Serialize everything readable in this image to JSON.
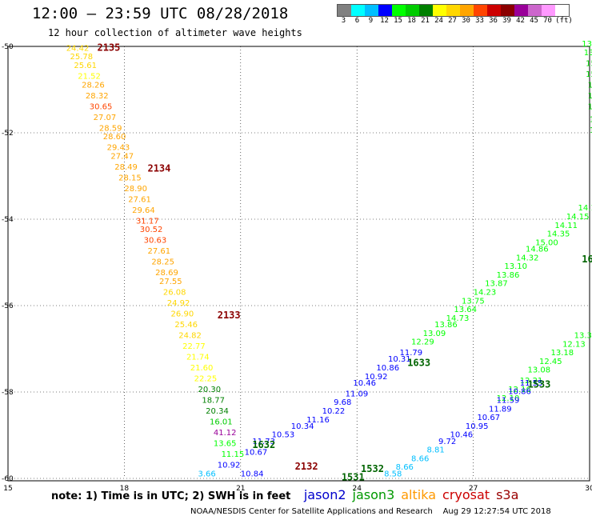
{
  "title": "12:00 – 23:59 UTC 08/28/2018",
  "subtitle": "12 hour collection of altimeter wave heights",
  "legend": {
    "colors": [
      "#808080",
      "#00ffff",
      "#00bfff",
      "#0000ff",
      "#00ff00",
      "#00cc00",
      "#008000",
      "#ffff00",
      "#ffd700",
      "#ffa500",
      "#ff4500",
      "#cc0000",
      "#8b0000",
      "#990099",
      "#cc66cc",
      "#ff99ff",
      "#ffffff"
    ],
    "labels": [
      "3",
      "6",
      "9",
      "12",
      "15",
      "18",
      "21",
      "24",
      "27",
      "30",
      "33",
      "36",
      "39",
      "42",
      "45",
      "70",
      "(ft)"
    ]
  },
  "axes": {
    "lon_ticks": [
      "15",
      "18",
      "21",
      "24",
      "27",
      "30"
    ],
    "lat_ticks": [
      "-50",
      "-52",
      "-54",
      "-56",
      "-58",
      "-60"
    ],
    "lon_range": [
      15,
      30
    ],
    "lat_range": [
      -60,
      -50
    ]
  },
  "chart_data": {
    "type": "scatter",
    "pass_labels": [
      {
        "text": "2135",
        "lon": 17.3,
        "lat": -50.1,
        "color": "#8b0000"
      },
      {
        "text": "2134",
        "lon": 18.6,
        "lat": -52.9,
        "color": "#8b0000"
      },
      {
        "text": "2133",
        "lon": 20.4,
        "lat": -56.3,
        "color": "#8b0000"
      },
      {
        "text": "2132",
        "lon": 22.4,
        "lat": -59.8,
        "color": "#8b0000"
      },
      {
        "text": "1633",
        "lon": 25.3,
        "lat": -57.4,
        "color": "#006400"
      },
      {
        "text": "1533",
        "lon": 28.4,
        "lat": -57.9,
        "color": "#006400"
      },
      {
        "text": "1632",
        "lon": 21.3,
        "lat": -59.3,
        "color": "#006400"
      },
      {
        "text": "1532",
        "lon": 24.1,
        "lat": -59.85,
        "color": "#006400"
      },
      {
        "text": "1531",
        "lon": 23.6,
        "lat": -60.05,
        "color": "#006400"
      },
      {
        "text": "16",
        "lon": 29.8,
        "lat": -55.0,
        "color": "#006400"
      }
    ],
    "series": [
      {
        "name": "altika-2135",
        "points": [
          {
            "lon": 16.5,
            "lat": -50.1,
            "v": "24.42",
            "c": "#ffd700"
          },
          {
            "lon": 16.6,
            "lat": -50.3,
            "v": "25.78",
            "c": "#ffd700"
          },
          {
            "lon": 16.7,
            "lat": -50.5,
            "v": "25.61",
            "c": "#ffd700"
          },
          {
            "lon": 16.8,
            "lat": -50.75,
            "v": "21.52",
            "c": "#ffff00"
          },
          {
            "lon": 16.9,
            "lat": -50.95,
            "v": "28.26",
            "c": "#ffa500"
          },
          {
            "lon": 17.0,
            "lat": -51.2,
            "v": "28.32",
            "c": "#ffa500"
          },
          {
            "lon": 17.1,
            "lat": -51.45,
            "v": "30.65",
            "c": "#ff4500"
          },
          {
            "lon": 17.2,
            "lat": -51.7,
            "v": "27.07",
            "c": "#ffa500"
          },
          {
            "lon": 17.35,
            "lat": -51.95,
            "v": "28.59",
            "c": "#ffa500"
          },
          {
            "lon": 17.45,
            "lat": -52.15,
            "v": "28.60",
            "c": "#ffa500"
          },
          {
            "lon": 17.55,
            "lat": -52.4,
            "v": "29.43",
            "c": "#ffa500"
          },
          {
            "lon": 17.65,
            "lat": -52.6,
            "v": "27.47",
            "c": "#ffa500"
          },
          {
            "lon": 17.75,
            "lat": -52.85,
            "v": "28.49",
            "c": "#ffa500"
          },
          {
            "lon": 17.85,
            "lat": -53.1,
            "v": "28.15",
            "c": "#ffa500"
          },
          {
            "lon": 18.0,
            "lat": -53.35,
            "v": "28.90",
            "c": "#ffa500"
          },
          {
            "lon": 18.1,
            "lat": -53.6,
            "v": "27.61",
            "c": "#ffa500"
          },
          {
            "lon": 18.2,
            "lat": -53.85,
            "v": "29.64",
            "c": "#ffa500"
          },
          {
            "lon": 18.3,
            "lat": -54.1,
            "v": "31.17",
            "c": "#ff4500"
          },
          {
            "lon": 18.4,
            "lat": -54.3,
            "v": "30.52",
            "c": "#ff4500"
          },
          {
            "lon": 18.5,
            "lat": -54.55,
            "v": "30.63",
            "c": "#ff4500"
          },
          {
            "lon": 18.6,
            "lat": -54.8,
            "v": "27.61",
            "c": "#ffa500"
          },
          {
            "lon": 18.7,
            "lat": -55.05,
            "v": "28.25",
            "c": "#ffa500"
          },
          {
            "lon": 18.8,
            "lat": -55.3,
            "v": "28.69",
            "c": "#ffa500"
          },
          {
            "lon": 18.9,
            "lat": -55.5,
            "v": "27.55",
            "c": "#ffa500"
          },
          {
            "lon": 19.0,
            "lat": -55.75,
            "v": "26.08",
            "c": "#ffd700"
          },
          {
            "lon": 19.1,
            "lat": -56.0,
            "v": "24.92",
            "c": "#ffd700"
          },
          {
            "lon": 19.2,
            "lat": -56.25,
            "v": "26.90",
            "c": "#ffd700"
          },
          {
            "lon": 19.3,
            "lat": -56.5,
            "v": "25.46",
            "c": "#ffd700"
          },
          {
            "lon": 19.4,
            "lat": -56.75,
            "v": "24.82",
            "c": "#ffd700"
          },
          {
            "lon": 19.5,
            "lat": -57.0,
            "v": "22.77",
            "c": "#ffff00"
          },
          {
            "lon": 19.6,
            "lat": -57.25,
            "v": "21.74",
            "c": "#ffff00"
          },
          {
            "lon": 19.7,
            "lat": -57.5,
            "v": "21.60",
            "c": "#ffff00"
          },
          {
            "lon": 19.8,
            "lat": -57.75,
            "v": "22.25",
            "c": "#ffff00"
          },
          {
            "lon": 19.9,
            "lat": -58.0,
            "v": "20.30",
            "c": "#008000"
          },
          {
            "lon": 20.0,
            "lat": -58.25,
            "v": "18.77",
            "c": "#008000"
          },
          {
            "lon": 20.1,
            "lat": -58.5,
            "v": "20.34",
            "c": "#008000"
          },
          {
            "lon": 20.2,
            "lat": -58.75,
            "v": "16.01",
            "c": "#00cc00"
          },
          {
            "lon": 20.3,
            "lat": -59.0,
            "v": "41.12",
            "c": "#990099"
          },
          {
            "lon": 20.3,
            "lat": -59.25,
            "v": "13.65",
            "c": "#00ff00"
          },
          {
            "lon": 20.5,
            "lat": -59.5,
            "v": "11.15",
            "c": "#00ff00"
          },
          {
            "lon": 20.4,
            "lat": -59.75,
            "v": "10.92",
            "c": "#0000ff"
          },
          {
            "lon": 19.9,
            "lat": -59.95,
            "v": "3.66",
            "c": "#00bfff"
          },
          {
            "lon": 21.0,
            "lat": -59.95,
            "v": "10.84",
            "c": "#0000ff"
          },
          {
            "lon": 21.1,
            "lat": -60.25,
            "v": "11.99",
            "c": "#0000ff"
          },
          {
            "lon": 21.3,
            "lat": -60.5,
            "v": "17.89",
            "c": "#00cc00"
          },
          {
            "lon": 21.4,
            "lat": -60.75,
            "v": "6.48",
            "c": "#00bfff"
          }
        ]
      },
      {
        "name": "jason2-1633",
        "points": [
          {
            "lon": 21.1,
            "lat": -59.45,
            "v": "10.67",
            "c": "#0000ff"
          },
          {
            "lon": 21.3,
            "lat": -59.2,
            "v": "11.73",
            "c": "#0000ff"
          },
          {
            "lon": 21.8,
            "lat": -59.05,
            "v": "10.53",
            "c": "#0000ff"
          },
          {
            "lon": 22.3,
            "lat": -58.85,
            "v": "10.34",
            "c": "#0000ff"
          },
          {
            "lon": 22.7,
            "lat": -58.7,
            "v": "11.16",
            "c": "#0000ff"
          },
          {
            "lon": 23.1,
            "lat": -58.5,
            "v": "10.22",
            "c": "#0000ff"
          },
          {
            "lon": 23.4,
            "lat": -58.3,
            "v": "9.68",
            "c": "#0000ff"
          },
          {
            "lon": 23.7,
            "lat": -58.1,
            "v": "11.09",
            "c": "#0000ff"
          },
          {
            "lon": 23.9,
            "lat": -57.85,
            "v": "10.46",
            "c": "#0000ff"
          },
          {
            "lon": 24.2,
            "lat": -57.7,
            "v": "10.92",
            "c": "#0000ff"
          },
          {
            "lon": 24.5,
            "lat": -57.5,
            "v": "10.86",
            "c": "#0000ff"
          },
          {
            "lon": 24.8,
            "lat": -57.3,
            "v": "10.31",
            "c": "#0000ff"
          },
          {
            "lon": 25.1,
            "lat": -57.15,
            "v": "11.79",
            "c": "#0000ff"
          }
        ]
      },
      {
        "name": "jason3-1633",
        "points": [
          {
            "lon": 25.4,
            "lat": -56.9,
            "v": "12.29",
            "c": "#00ff00"
          },
          {
            "lon": 25.7,
            "lat": -56.7,
            "v": "13.09",
            "c": "#00ff00"
          },
          {
            "lon": 26.0,
            "lat": -56.5,
            "v": "13.86",
            "c": "#00ff00"
          },
          {
            "lon": 26.3,
            "lat": -56.35,
            "v": "14.73",
            "c": "#00ff00"
          },
          {
            "lon": 26.5,
            "lat": -56.15,
            "v": "13.64",
            "c": "#00ff00"
          },
          {
            "lon": 26.7,
            "lat": -55.95,
            "v": "13.75",
            "c": "#00ff00"
          },
          {
            "lon": 27.0,
            "lat": -55.75,
            "v": "14.23",
            "c": "#00ff00"
          },
          {
            "lon": 27.3,
            "lat": -55.55,
            "v": "13.87",
            "c": "#00ff00"
          },
          {
            "lon": 27.6,
            "lat": -55.35,
            "v": "13.86",
            "c": "#00ff00"
          },
          {
            "lon": 27.8,
            "lat": -55.15,
            "v": "13.10",
            "c": "#00ff00"
          },
          {
            "lon": 28.1,
            "lat": -54.95,
            "v": "14.32",
            "c": "#00ff00"
          },
          {
            "lon": 28.35,
            "lat": -54.75,
            "v": "14.86",
            "c": "#00ff00"
          },
          {
            "lon": 28.6,
            "lat": -54.6,
            "v": "15.00",
            "c": "#00ff00"
          },
          {
            "lon": 28.9,
            "lat": -54.4,
            "v": "14.35",
            "c": "#00ff00"
          },
          {
            "lon": 29.1,
            "lat": -54.2,
            "v": "14.11",
            "c": "#00ff00"
          },
          {
            "lon": 29.4,
            "lat": -54.0,
            "v": "14.15",
            "c": "#00ff00"
          },
          {
            "lon": 29.7,
            "lat": -53.8,
            "v": "14.14",
            "c": "#00ff00"
          }
        ]
      },
      {
        "name": "jason3-1533",
        "points": [
          {
            "lon": 27.6,
            "lat": -58.2,
            "v": "12.10",
            "c": "#00ff00"
          },
          {
            "lon": 27.9,
            "lat": -58.0,
            "v": "12.16",
            "c": "#00ff00"
          },
          {
            "lon": 28.2,
            "lat": -57.8,
            "v": "12.21",
            "c": "#00ff00"
          },
          {
            "lon": 28.4,
            "lat": -57.55,
            "v": "13.08",
            "c": "#00ff00"
          },
          {
            "lon": 28.7,
            "lat": -57.35,
            "v": "12.45",
            "c": "#00ff00"
          },
          {
            "lon": 29.0,
            "lat": -57.15,
            "v": "13.18",
            "c": "#00ff00"
          },
          {
            "lon": 29.3,
            "lat": -56.95,
            "v": "12.13",
            "c": "#00ff00"
          },
          {
            "lon": 29.6,
            "lat": -56.75,
            "v": "13.34",
            "c": "#00ff00"
          }
        ]
      },
      {
        "name": "jason2-1533",
        "points": [
          {
            "lon": 23.8,
            "lat": -60.75,
            "v": "8.29",
            "c": "#00bfff"
          },
          {
            "lon": 23.95,
            "lat": -60.55,
            "v": "8.15",
            "c": "#00bfff"
          },
          {
            "lon": 24.2,
            "lat": -60.35,
            "v": "8.32",
            "c": "#00bfff"
          },
          {
            "lon": 24.4,
            "lat": -60.15,
            "v": "8.07",
            "c": "#00bfff"
          },
          {
            "lon": 24.7,
            "lat": -59.95,
            "v": "8.58",
            "c": "#00bfff"
          },
          {
            "lon": 25.0,
            "lat": -59.8,
            "v": "8.66",
            "c": "#00bfff"
          },
          {
            "lon": 25.4,
            "lat": -59.6,
            "v": "8.66",
            "c": "#00bfff"
          },
          {
            "lon": 25.8,
            "lat": -59.4,
            "v": "8.81",
            "c": "#00bfff"
          },
          {
            "lon": 26.1,
            "lat": -59.2,
            "v": "9.72",
            "c": "#0000ff"
          },
          {
            "lon": 26.4,
            "lat": -59.05,
            "v": "10.46",
            "c": "#0000ff"
          },
          {
            "lon": 26.8,
            "lat": -58.85,
            "v": "10.95",
            "c": "#0000ff"
          },
          {
            "lon": 27.1,
            "lat": -58.65,
            "v": "10.67",
            "c": "#0000ff"
          },
          {
            "lon": 27.4,
            "lat": -58.45,
            "v": "11.89",
            "c": "#0000ff"
          },
          {
            "lon": 27.6,
            "lat": -58.25,
            "v": "11.59",
            "c": "#0000ff"
          },
          {
            "lon": 27.9,
            "lat": -58.05,
            "v": "10.86",
            "c": "#0000ff"
          },
          {
            "lon": 28.2,
            "lat": -57.85,
            "v": "11.55",
            "c": "#0000ff"
          }
        ]
      },
      {
        "name": "jason3-east",
        "points": [
          {
            "lon": 29.8,
            "lat": -50.0,
            "v": "13.90",
            "c": "#00ff00"
          },
          {
            "lon": 29.85,
            "lat": -50.2,
            "v": "13.78",
            "c": "#00ff00"
          },
          {
            "lon": 29.9,
            "lat": -50.45,
            "v": "15.20",
            "c": "#00cc00"
          },
          {
            "lon": 29.9,
            "lat": -50.7,
            "v": "15.54",
            "c": "#00cc00"
          },
          {
            "lon": 29.95,
            "lat": -50.95,
            "v": "15.7",
            "c": "#00cc00"
          },
          {
            "lon": 29.95,
            "lat": -51.2,
            "v": "16.3",
            "c": "#00cc00"
          },
          {
            "lon": 29.95,
            "lat": -51.45,
            "v": "16.7",
            "c": "#00cc00"
          },
          {
            "lon": 30.0,
            "lat": -51.75,
            "v": "17",
            "c": "#00cc00"
          },
          {
            "lon": 30.0,
            "lat": -52.0,
            "v": "18",
            "c": "#00cc00"
          },
          {
            "lon": 30.05,
            "lat": -52.25,
            "v": "17",
            "c": "#00cc00"
          },
          {
            "lon": 30.05,
            "lat": -52.5,
            "v": "17",
            "c": "#00cc00"
          },
          {
            "lon": 30.05,
            "lat": -52.75,
            "v": "18",
            "c": "#00cc00"
          },
          {
            "lon": 30.1,
            "lat": -53.0,
            "v": "17",
            "c": "#00cc00"
          },
          {
            "lon": 30.1,
            "lat": -53.25,
            "v": "17",
            "c": "#00cc00"
          },
          {
            "lon": 30.1,
            "lat": -53.5,
            "v": "1",
            "c": "#00cc00"
          }
        ]
      }
    ]
  },
  "note_row": {
    "note": "note: 1) Time is in UTC; 2) SWH is in feet",
    "satellites": [
      {
        "name": "jason2",
        "color": "#0000cc"
      },
      {
        "name": "jason3",
        "color": "#009900"
      },
      {
        "name": "altika",
        "color": "#ff9900"
      },
      {
        "name": "cryosat",
        "color": "#cc0000"
      },
      {
        "name": "s3a",
        "color": "#990000"
      }
    ]
  },
  "footer": "NOAA/NESDIS Center for Satellite Applications and Research    Aug 29 12:27:54 UTC 2018"
}
